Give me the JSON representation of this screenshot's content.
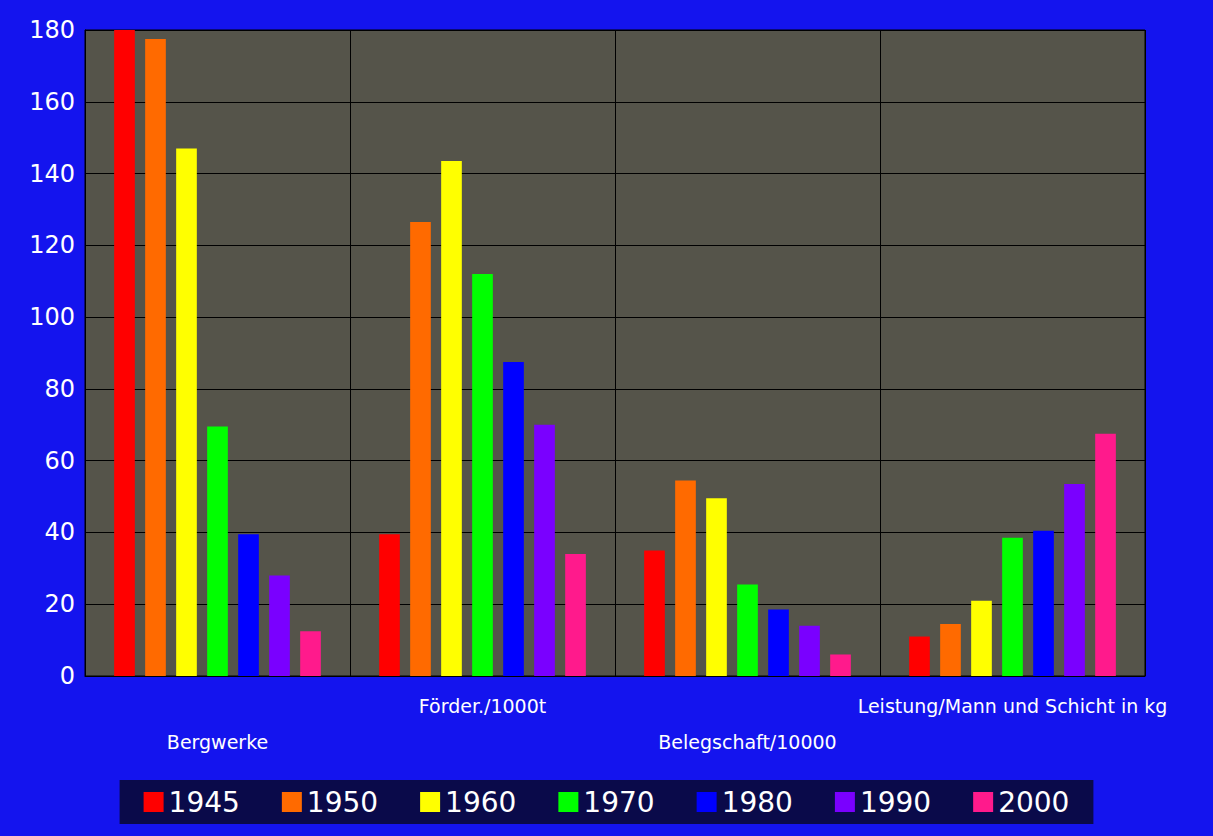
{
  "chart_data": {
    "type": "bar",
    "categories": [
      "Bergwerke",
      "Förder./1000t",
      "Belegschaft/10000",
      "Leistung/Mann und Schicht in kg"
    ],
    "series": [
      {
        "name": "1945",
        "color": "#ff0000",
        "values": [
          180,
          39.5,
          35,
          11
        ]
      },
      {
        "name": "1950",
        "color": "#ff6a00",
        "values": [
          177.5,
          126.5,
          54.5,
          14.5
        ]
      },
      {
        "name": "1960",
        "color": "#ffff00",
        "values": [
          147,
          143.5,
          49.5,
          21
        ]
      },
      {
        "name": "1970",
        "color": "#00ff00",
        "values": [
          69.5,
          112,
          25.5,
          38.5
        ]
      },
      {
        "name": "1980",
        "color": "#0000ff",
        "values": [
          39.5,
          87.5,
          18.5,
          40.5
        ]
      },
      {
        "name": "1990",
        "color": "#7a00ff",
        "values": [
          28,
          70,
          14,
          53.5
        ]
      },
      {
        "name": "2000",
        "color": "#ff1a8c",
        "values": [
          12.5,
          34,
          6,
          67.5
        ]
      }
    ],
    "ylim": [
      0,
      180
    ],
    "yticks": [
      0,
      20,
      40,
      60,
      80,
      100,
      120,
      140,
      160,
      180
    ],
    "grid": true,
    "legend": "bottom"
  }
}
